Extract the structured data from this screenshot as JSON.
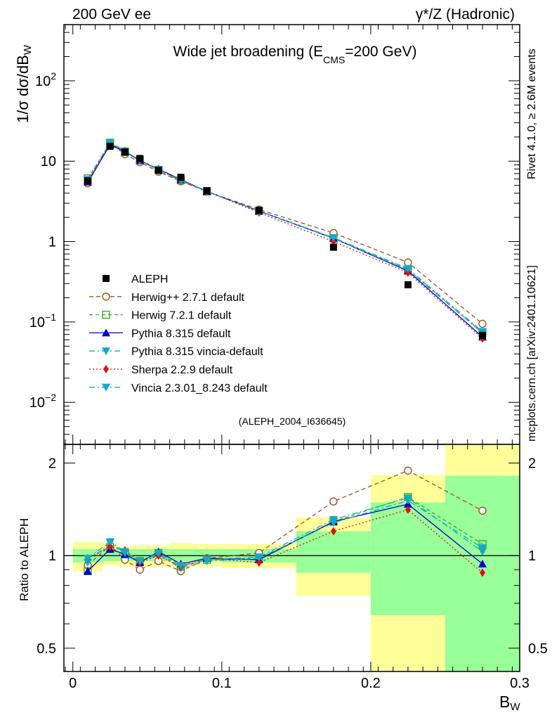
{
  "header": {
    "left": "200 GeV ee",
    "right": "γ*/Z (Hadronic)",
    "side_right": "Rivet 4.1.0, ≥ 2.6M events",
    "side_right2": "mcplots.cern.ch [arXiv:2401.10621]"
  },
  "chart_data": {
    "type": "line",
    "title": "Wide jet broadening (E_CMS=200 GeV)",
    "title_main": "Wide jet broadening (E",
    "title_sub": "CMS",
    "title_tail": "=200 GeV)",
    "analysis_id": "(ALEPH_2004_I636645)",
    "xlabel": "B",
    "xlabel_sub": "W",
    "ylabel": "1/σ  dσ/dB",
    "ylabel_sub": "W",
    "ratio_ylabel": "Ratio to ALEPH",
    "xlim": [
      -0.006,
      0.3
    ],
    "ylim_main": [
      0.003,
      500
    ],
    "ylim_ratio": [
      0.42,
      2.3
    ],
    "yscale_main": "log",
    "yscale_ratio": "log",
    "x_ticks": [
      "0",
      "0.1",
      "0.2",
      "0.3"
    ],
    "x_tick_values": [
      0,
      0.1,
      0.2,
      0.3
    ],
    "main_y_ticks": [
      {
        "v": 100,
        "base": "10",
        "exp": "2"
      },
      {
        "v": 10,
        "base": "10",
        "exp": ""
      },
      {
        "v": 1,
        "base": "1",
        "exp": ""
      },
      {
        "v": 0.1,
        "base": "10",
        "exp": "−1"
      },
      {
        "v": 0.01,
        "base": "10",
        "exp": "−2"
      }
    ],
    "ratio_y_ticks": [
      {
        "v": 2,
        "label": "2"
      },
      {
        "v": 1,
        "label": "1"
      },
      {
        "v": 0.5,
        "label": "0.5"
      }
    ],
    "legend_position": "center-left",
    "x": [
      0.01,
      0.025,
      0.035,
      0.045,
      0.0575,
      0.0725,
      0.09,
      0.125,
      0.175,
      0.225,
      0.275
    ],
    "data": {
      "name": "ALEPH",
      "values": [
        5.7,
        15.3,
        13.0,
        10.8,
        7.7,
        6.3,
        4.3,
        2.45,
        0.85,
        0.29,
        0.068
      ]
    },
    "bands": [
      {
        "x0": 0.0,
        "x1": 0.02,
        "y_lo": 0.89,
        "y_hi": 1.11,
        "g_lo": 0.95,
        "g_hi": 1.05
      },
      {
        "x0": 0.02,
        "x1": 0.03,
        "y_lo": 0.93,
        "y_hi": 1.1,
        "g_lo": 0.96,
        "g_hi": 1.05
      },
      {
        "x0": 0.03,
        "x1": 0.04,
        "y_lo": 0.92,
        "y_hi": 1.07,
        "g_lo": 0.96,
        "g_hi": 1.05
      },
      {
        "x0": 0.04,
        "x1": 0.05,
        "y_lo": 0.92,
        "y_hi": 1.08,
        "g_lo": 0.96,
        "g_hi": 1.05
      },
      {
        "x0": 0.05,
        "x1": 0.065,
        "y_lo": 0.92,
        "y_hi": 1.08,
        "g_lo": 0.96,
        "g_hi": 1.05
      },
      {
        "x0": 0.065,
        "x1": 0.08,
        "y_lo": 0.92,
        "y_hi": 1.1,
        "g_lo": 0.96,
        "g_hi": 1.05
      },
      {
        "x0": 0.08,
        "x1": 0.1,
        "y_lo": 0.92,
        "y_hi": 1.09,
        "g_lo": 0.96,
        "g_hi": 1.05
      },
      {
        "x0": 0.1,
        "x1": 0.15,
        "y_lo": 0.91,
        "y_hi": 1.09,
        "g_lo": 0.95,
        "g_hi": 1.05
      },
      {
        "x0": 0.15,
        "x1": 0.2,
        "y_lo": 0.74,
        "y_hi": 1.33,
        "g_lo": 0.88,
        "g_hi": 1.2
      },
      {
        "x0": 0.2,
        "x1": 0.25,
        "y_lo": 0.42,
        "y_hi": 1.83,
        "g_lo": 0.64,
        "g_hi": 1.49
      },
      {
        "x0": 0.25,
        "x1": 0.3,
        "y_lo": 0.42,
        "y_hi": 2.3,
        "g_lo": 0.42,
        "g_hi": 1.82
      }
    ],
    "series": [
      {
        "name": "Herwig++ 2.7.1 default",
        "color": "#a0521f",
        "dash": "6,4",
        "marker": "circle-open",
        "values": [
          5.3,
          16.5,
          12.2,
          9.7,
          7.4,
          5.6,
          4.2,
          2.5,
          1.28,
          0.55,
          0.095
        ],
        "ratio": [
          0.93,
          1.08,
          0.97,
          0.9,
          0.96,
          0.89,
          0.98,
          1.02,
          1.5,
          1.89,
          1.4
        ]
      },
      {
        "name": "Herwig 7.2.1 default",
        "color": "#3aaa28",
        "dash": "5,4",
        "marker": "square-open",
        "values": [
          6.1,
          16.8,
          13.0,
          10.3,
          7.8,
          5.8,
          4.2,
          2.4,
          1.1,
          0.45,
          0.074
        ],
        "ratio": [
          0.89,
          1.05,
          1.01,
          0.96,
          1.02,
          0.92,
          0.97,
          0.98,
          1.29,
          1.55,
          1.09
        ]
      },
      {
        "name": "Pythia 8.315 default",
        "color": "#0000cc",
        "dash": "",
        "marker": "triangle-up",
        "values": [
          5.5,
          16.0,
          13.1,
          10.2,
          8.0,
          5.9,
          4.2,
          2.4,
          1.1,
          0.43,
          0.065
        ],
        "ratio": [
          0.89,
          1.05,
          1.01,
          0.95,
          1.03,
          0.94,
          0.98,
          0.97,
          1.29,
          1.47,
          0.94
        ]
      },
      {
        "name": "Pythia 8.315 vincia-default",
        "color": "#11aac8",
        "dash": "8,4,2,4",
        "marker": "triangle-down",
        "values": [
          5.7,
          17.0,
          13.2,
          10.2,
          7.8,
          5.7,
          4.2,
          2.4,
          1.1,
          0.44,
          0.073
        ],
        "ratio": [
          0.95,
          1.1,
          1.02,
          0.95,
          1.01,
          0.91,
          0.96,
          0.98,
          1.28,
          1.51,
          1.06
        ]
      },
      {
        "name": "Sherpa 2.2.9 default",
        "color": "#e01010",
        "dash": "2,3",
        "marker": "diamond",
        "values": [
          5.6,
          16.5,
          13.5,
          10.2,
          7.7,
          5.8,
          4.2,
          2.3,
          1.0,
          0.41,
          0.062
        ],
        "ratio": [
          0.98,
          1.07,
          1.04,
          0.95,
          1.0,
          0.92,
          0.98,
          0.95,
          1.2,
          1.41,
          0.88
        ]
      },
      {
        "name": "Vincia 2.3.01_8.243 default",
        "color": "#11aac8",
        "dash": "8,4,2,4",
        "marker": "triangle-down",
        "values": [
          5.9,
          17.2,
          13.4,
          10.3,
          7.9,
          5.8,
          4.2,
          2.4,
          1.12,
          0.46,
          0.076
        ],
        "ratio": [
          0.98,
          1.11,
          1.03,
          0.96,
          1.02,
          0.93,
          0.97,
          0.99,
          1.31,
          1.54,
          1.03
        ]
      }
    ]
  }
}
